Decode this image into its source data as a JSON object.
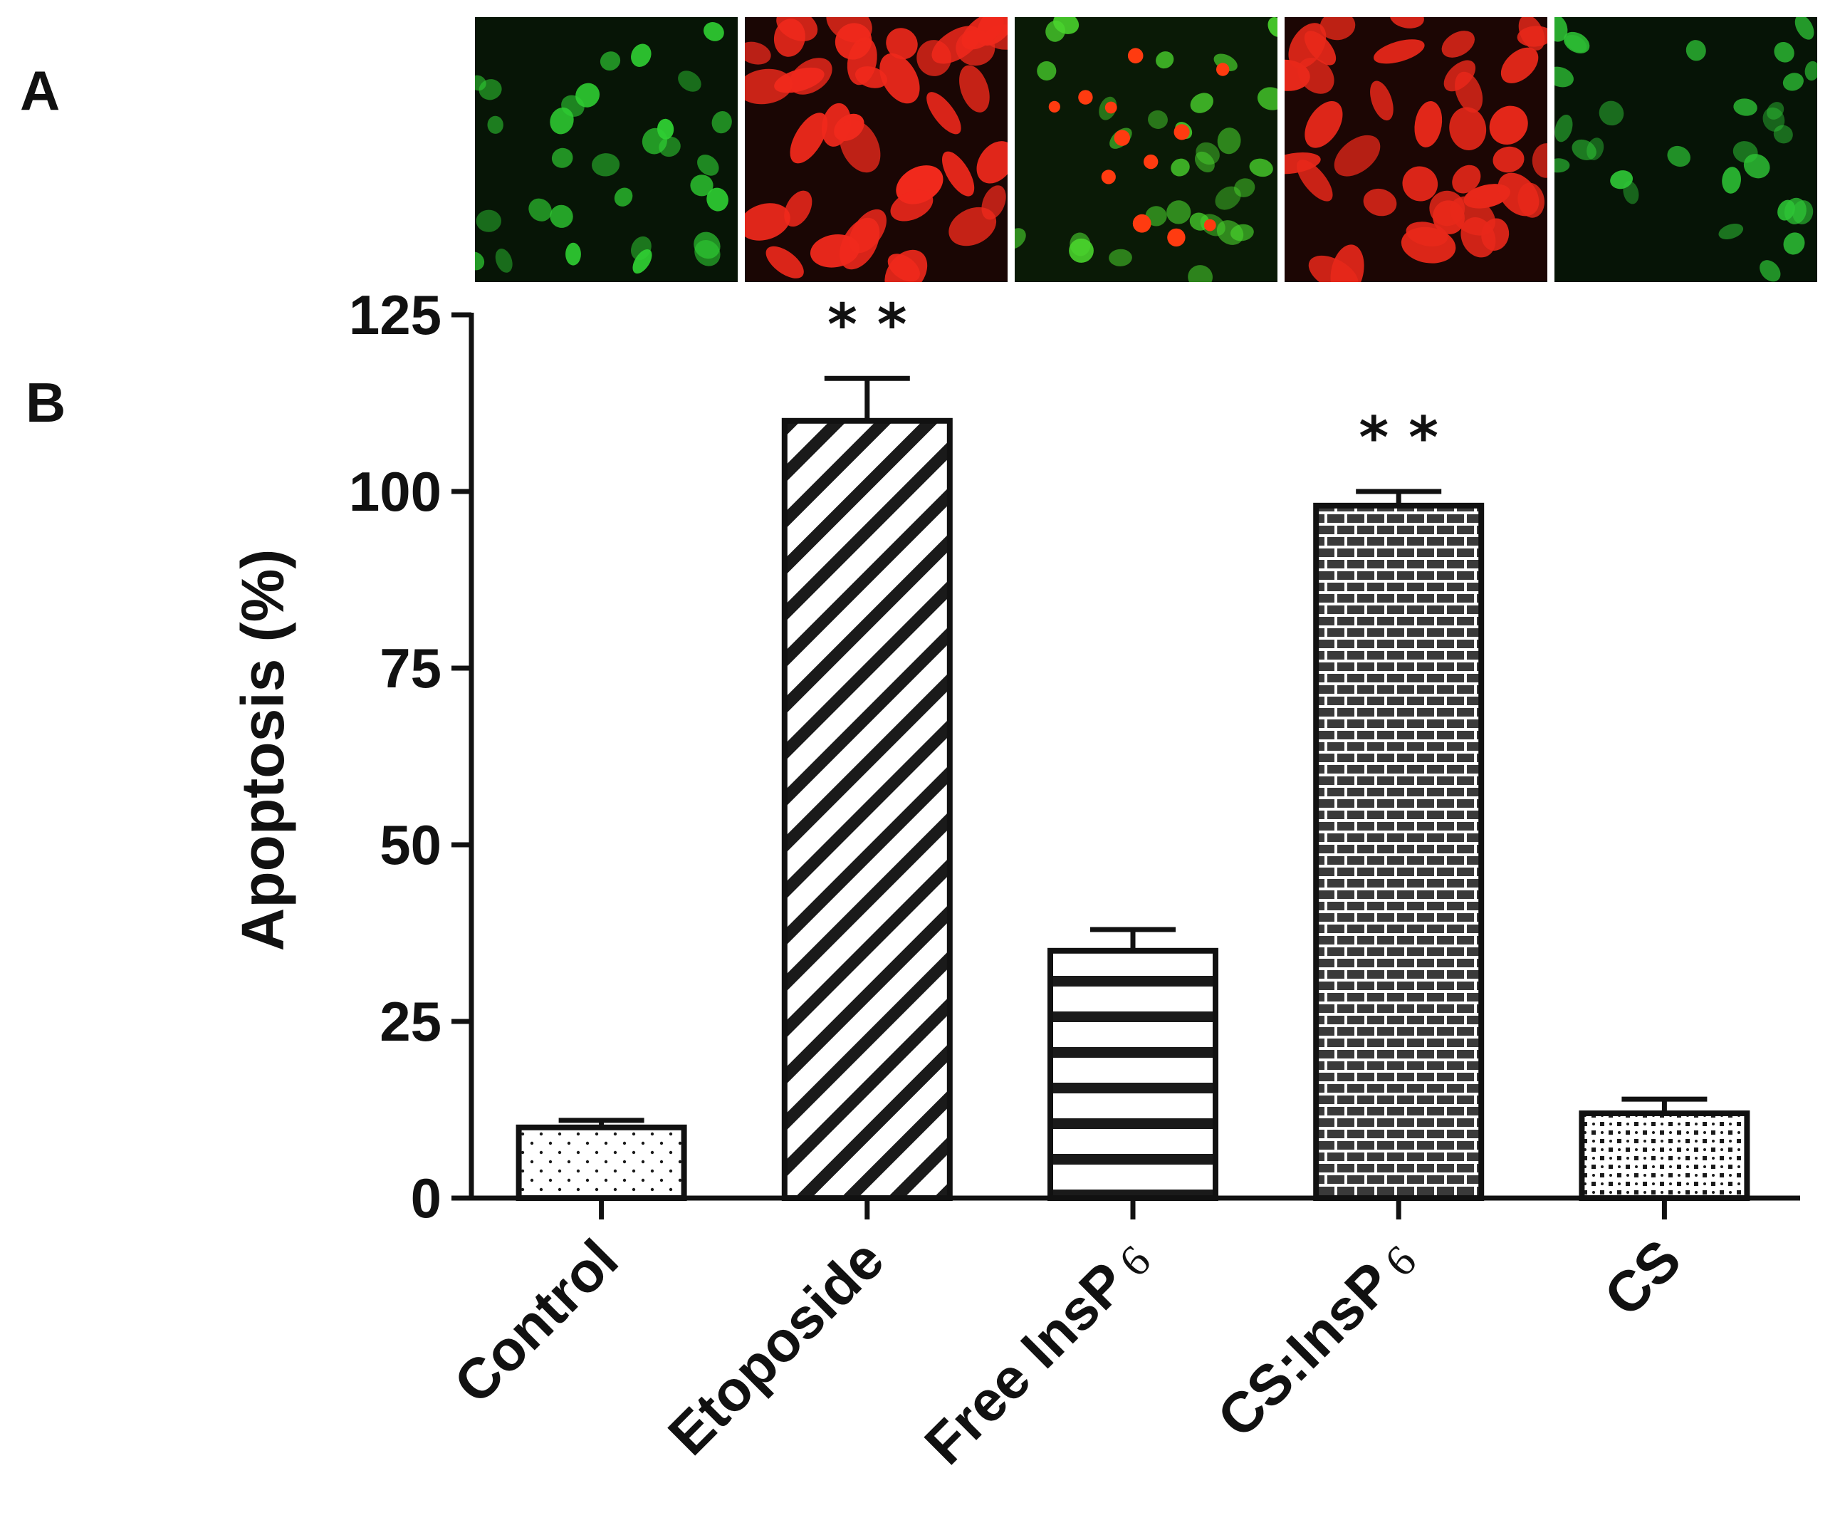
{
  "panels": {
    "a_label": "A",
    "b_label": "B"
  },
  "micrographs": [
    {
      "name": "control-micrograph",
      "stain": "green",
      "colors": {
        "bg": "#071506",
        "cell": "#2fcf33"
      }
    },
    {
      "name": "etoposide-micrograph",
      "stain": "red",
      "colors": {
        "bg": "#1a0604",
        "cell": "#f0291c"
      }
    },
    {
      "name": "free-insp6-micrograph",
      "stain": "mixed",
      "colors": {
        "bg": "#0a1a06",
        "cell": "#4ad62e",
        "apoptotic": "#ff3b10"
      }
    },
    {
      "name": "cs-insp6-micrograph",
      "stain": "red",
      "colors": {
        "bg": "#1c0604",
        "cell": "#e8281a"
      }
    },
    {
      "name": "cs-micrograph",
      "stain": "green",
      "colors": {
        "bg": "#061406",
        "cell": "#2ec436"
      }
    }
  ],
  "chart_data": {
    "type": "bar",
    "title": "",
    "xlabel": "",
    "ylabel": "Apoptosis (%)",
    "ylim": [
      0,
      125
    ],
    "yticks": [
      "0",
      "25",
      "50",
      "75",
      "100",
      "125"
    ],
    "categories": [
      "Control",
      "Etoposide",
      "Free InsP",
      "CS:InsP",
      "CS"
    ],
    "category_subscripts": [
      "",
      "",
      "6",
      "6",
      ""
    ],
    "values": [
      10,
      110,
      35,
      98,
      12
    ],
    "errors": [
      1,
      6,
      3,
      2,
      2
    ],
    "patterns": [
      "dots",
      "diagonal",
      "horizontal",
      "brick",
      "checker"
    ],
    "significance": [
      "",
      "* *",
      "",
      "* *",
      ""
    ],
    "grid": false,
    "colors": {
      "axis": "#111111",
      "fill": "#ffffff",
      "pattern": "#1a1a1a",
      "brick": "#3a3a3a"
    }
  }
}
